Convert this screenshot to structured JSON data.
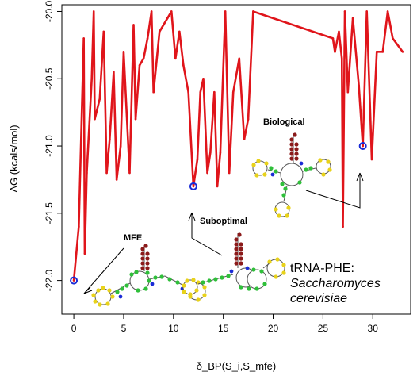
{
  "chart_data": {
    "type": "line",
    "xlabel": "δ_BP(S_i,S_mfe)",
    "ylabel": "ΔG (kcals/mol)",
    "xlim": [
      -1.2,
      33.8
    ],
    "ylim": [
      -22.25,
      -19.95
    ],
    "ylog": false,
    "x_ticks": [
      "0",
      "5",
      "10",
      "15",
      "20",
      "25",
      "30"
    ],
    "y_ticks": [
      "-20.0",
      "-20.5",
      "-21.0",
      "-21.5",
      "-22.0"
    ],
    "grid": false,
    "series": [
      {
        "color": "#e0151b",
        "x": [
          0,
          0.5,
          1,
          1.1,
          1.3,
          1.8,
          2,
          2.1,
          2.6,
          3,
          3.3,
          3.6,
          4,
          4.3,
          4.7,
          5,
          5.6,
          6,
          6.2,
          6.6,
          7,
          7.4,
          7.8,
          8,
          8.6,
          9,
          9.4,
          9.8,
          10.2,
          10.6,
          11,
          11.5,
          12,
          12.4,
          12.7,
          13,
          13.4,
          13.7,
          14.1,
          14.4,
          14.7,
          15.2,
          15.6,
          16,
          16.6,
          17.1,
          17.5,
          18,
          26,
          26.2,
          26.6,
          26.9,
          27,
          27.2,
          27.5,
          28,
          28.6,
          29,
          29.4,
          29.9,
          30.4,
          31,
          31.5,
          32,
          33
        ],
        "y": [
          -22.0,
          -21.6,
          -20.2,
          -21.8,
          -21.2,
          -20.5,
          -20.0,
          -20.8,
          -20.65,
          -20.15,
          -21.2,
          -20.95,
          -20.45,
          -21.25,
          -21.0,
          -20.3,
          -21.2,
          -20.1,
          -20.8,
          -20.4,
          -20.35,
          -20.2,
          -20.0,
          -20.6,
          -20.15,
          -20.1,
          -20.05,
          -20.0,
          -20.35,
          -20.15,
          -20.4,
          -20.6,
          -21.3,
          -21.1,
          -20.6,
          -20.5,
          -21.2,
          -21.05,
          -20.6,
          -21.3,
          -21.05,
          -20.0,
          -21.2,
          -20.6,
          -20.35,
          -20.95,
          -20.8,
          -20.0,
          -20.2,
          -20.3,
          -20.15,
          -20.35,
          -21.6,
          -20.0,
          -20.6,
          -20.05,
          -20.55,
          -21.0,
          -20.0,
          -21.1,
          -20.3,
          -20.3,
          -20.0,
          -20.2,
          -20.3
        ]
      }
    ],
    "highlighted_points": [
      {
        "x": 0,
        "y": -22.0,
        "label": "MFE"
      },
      {
        "x": 12,
        "y": -21.3,
        "label": "Suboptimal"
      },
      {
        "x": 29,
        "y": -21.0,
        "label": "Biological"
      }
    ],
    "annotations": {
      "mfe": "MFE",
      "suboptimal": "Suboptimal",
      "biological": "Biological",
      "title_line1": "tRNA-PHE:",
      "title_line2": "Saccharomyces",
      "title_line3": "cerevisiae"
    }
  }
}
